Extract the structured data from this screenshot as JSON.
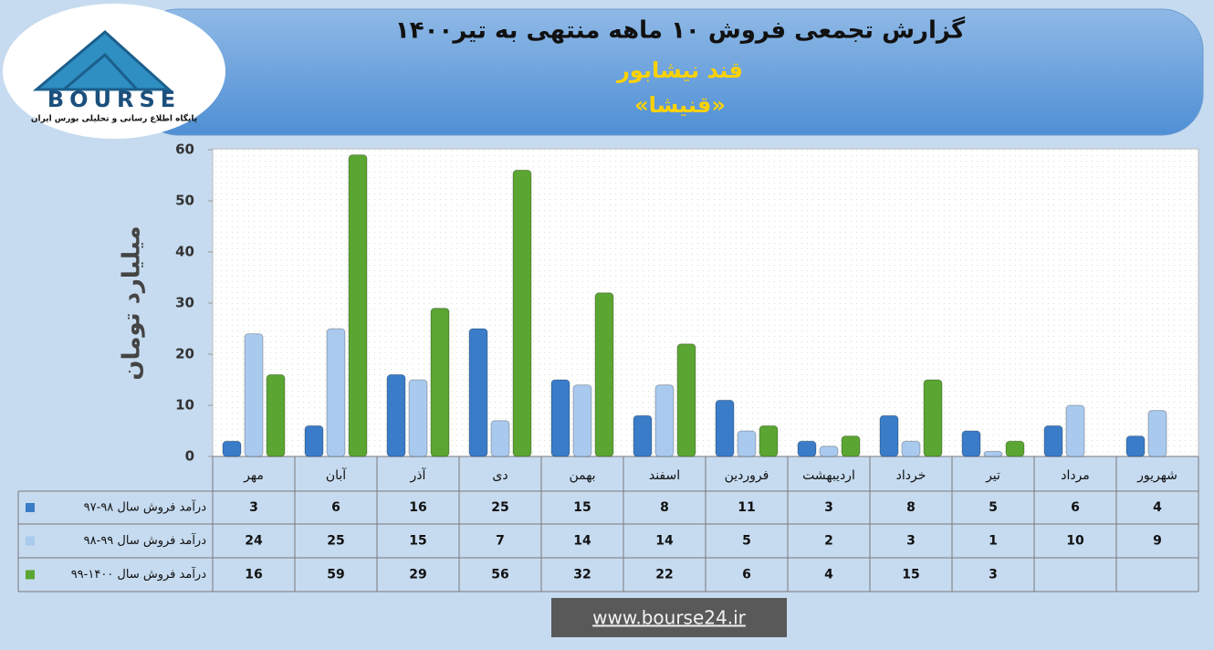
{
  "logo": {
    "name": "BOURSE",
    "tagline": "پایگاه اطلاع رسانی و تحلیلی بورس ایران"
  },
  "chart_data": {
    "type": "bar",
    "title": "گزارش تجمعی فروش ۱۰ ماهه منتهی به تیر۱۴۰۰",
    "subtitle": "قند نیشابور",
    "symbol": "«قنیشا»",
    "y_label": "میلیارد تومان",
    "categories": [
      "مهر",
      "آبان",
      "آذر",
      "دی",
      "بهمن",
      "اسفند",
      "فروردین",
      "اردیبهشت",
      "خرداد",
      "تیر",
      "مرداد",
      "شهریور"
    ],
    "series": [
      {
        "name": "درآمد فروش سال ۹۸-۹۷",
        "color": "#3a7cc8",
        "values": [
          3,
          6,
          16,
          25,
          15,
          8,
          11,
          3,
          8,
          5,
          6,
          4
        ]
      },
      {
        "name": "درآمد فروش سال ۹۹-۹۸",
        "color": "#aac9ee",
        "values": [
          24,
          25,
          15,
          7,
          14,
          14,
          5,
          2,
          3,
          1,
          10,
          9
        ]
      },
      {
        "name": "درآمد فروش سال ۱۴۰۰-۹۹",
        "color": "#5ba532",
        "values": [
          16,
          59,
          29,
          56,
          32,
          22,
          6,
          4,
          15,
          3,
          null,
          null
        ]
      }
    ],
    "ylim": [
      0,
      60
    ],
    "yticks": [
      0,
      10,
      20,
      30,
      40,
      50,
      60
    ],
    "grid": false
  },
  "footer": "www.bourse24.ir"
}
